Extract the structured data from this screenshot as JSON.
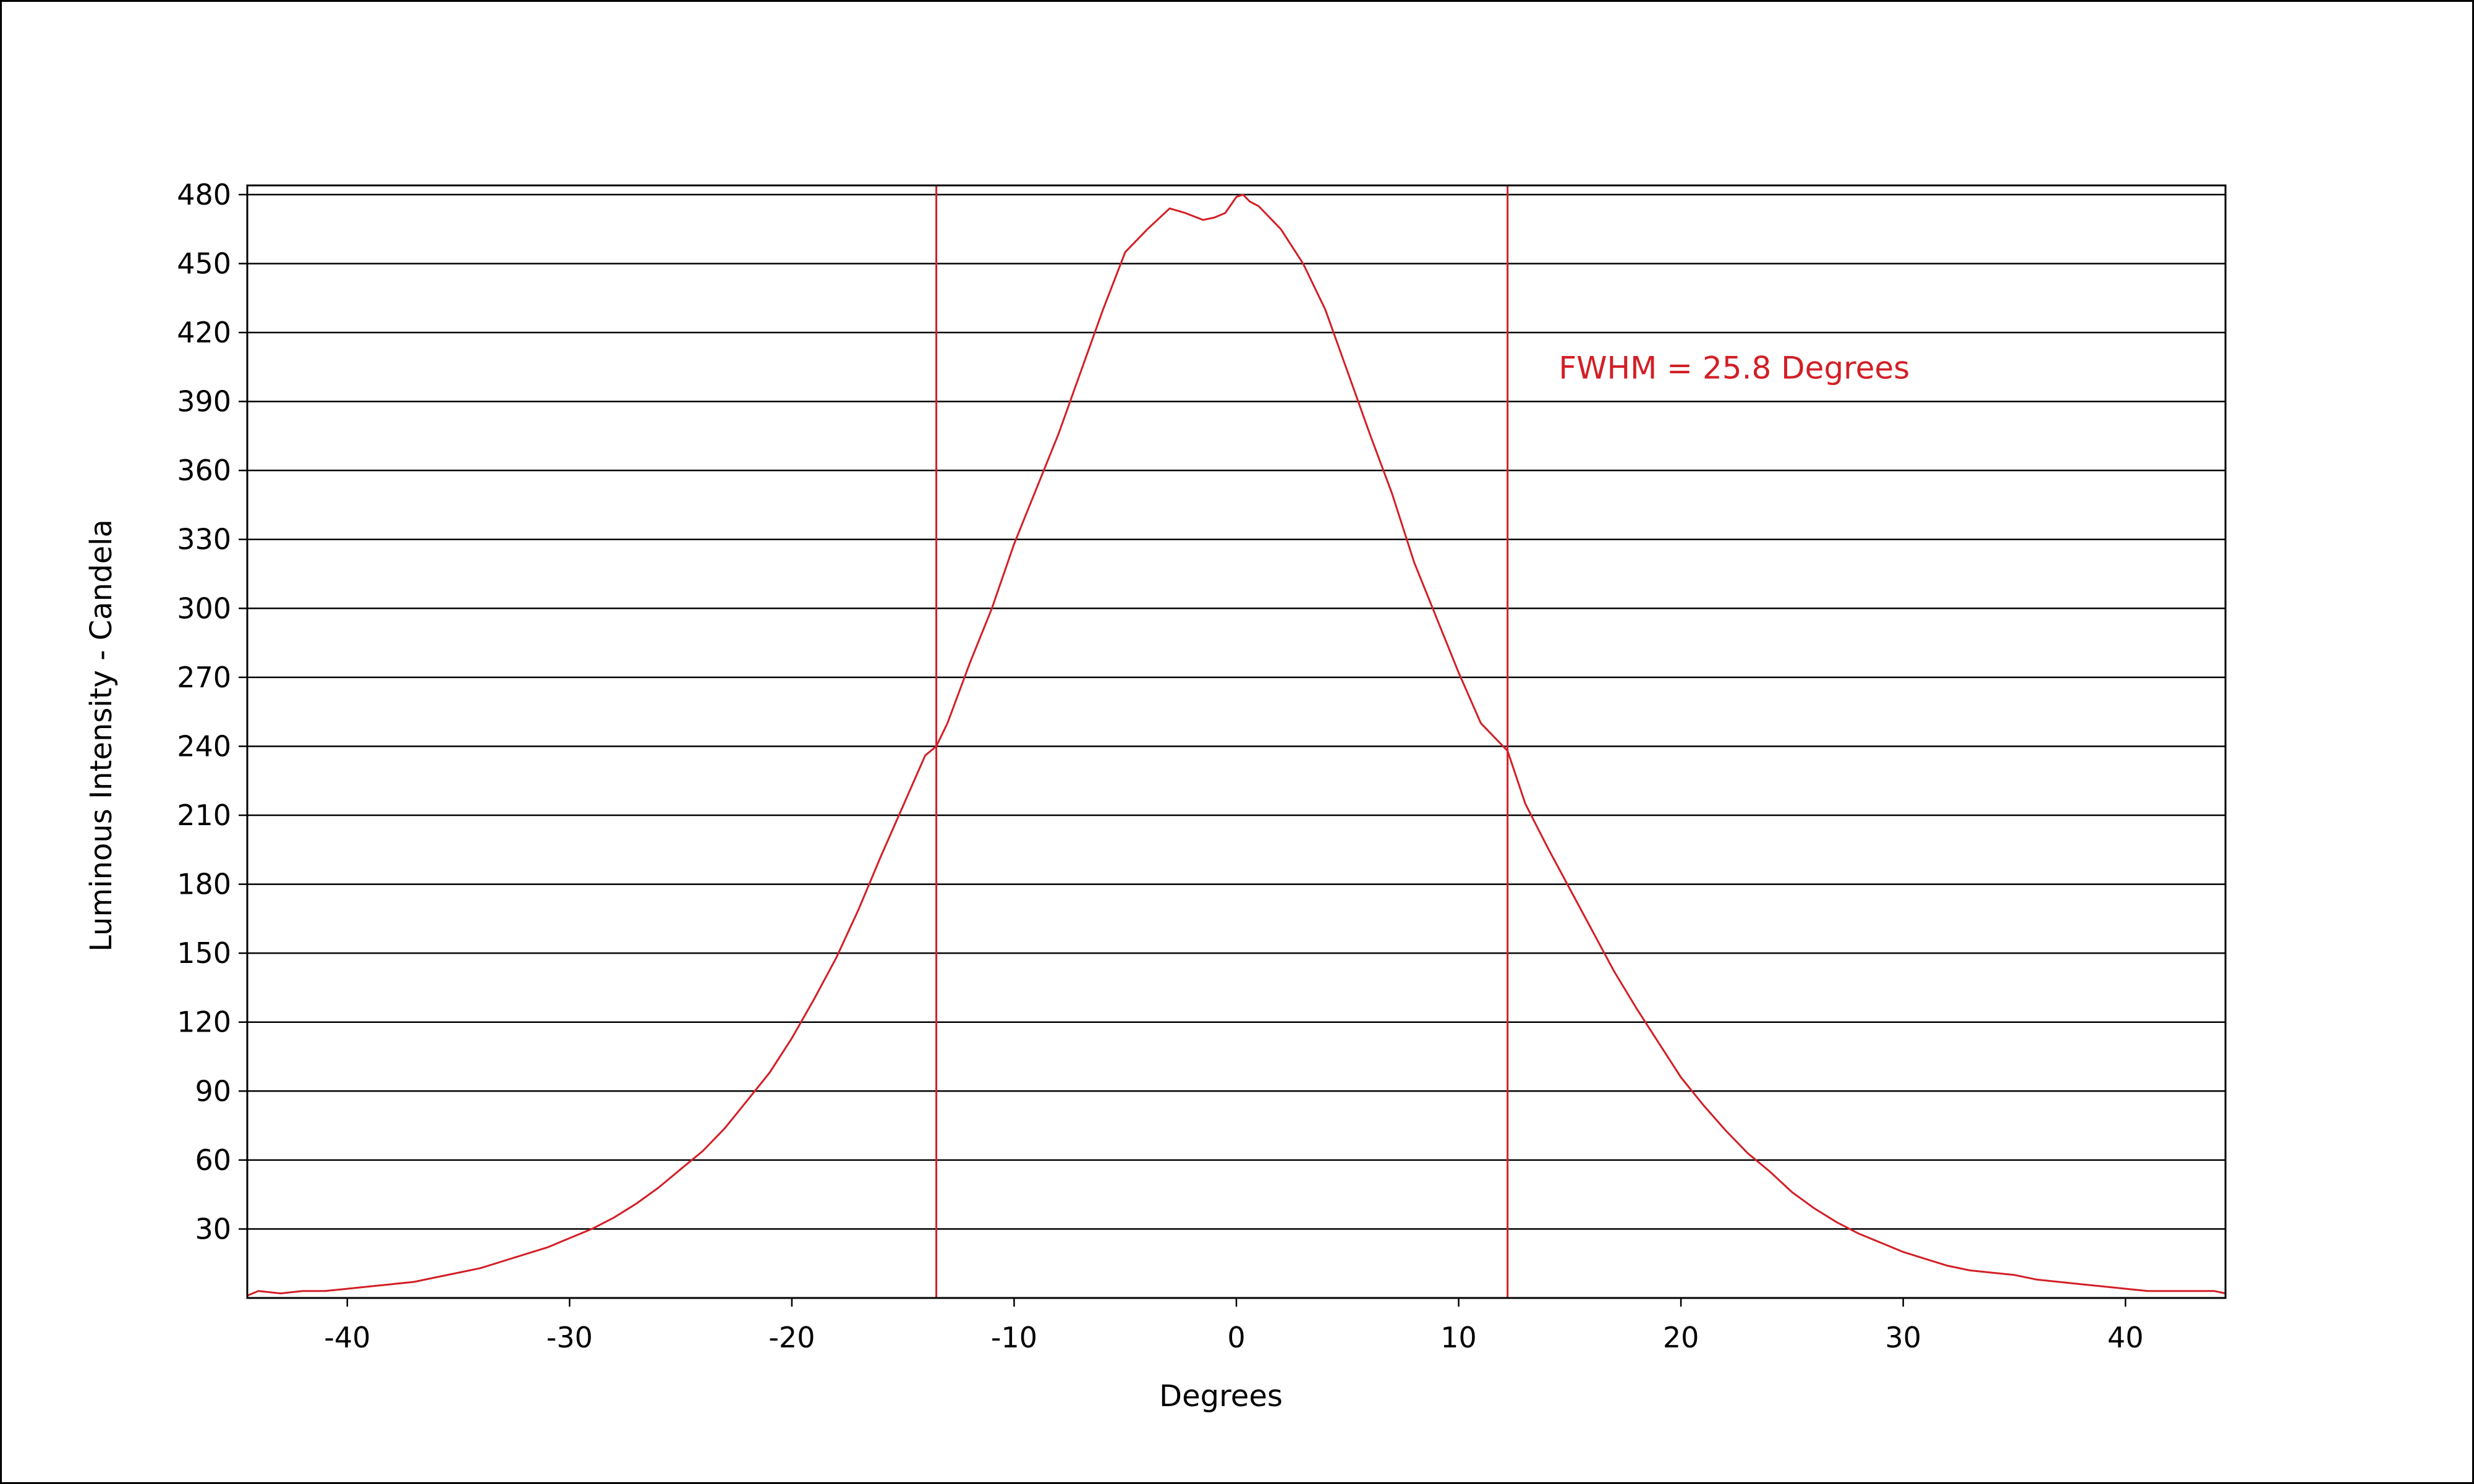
{
  "chart_data": {
    "type": "line",
    "title": "",
    "xlabel": "Degrees",
    "ylabel": "Luminous Intensity - Candela",
    "xlim": [
      -44.5,
      44.5
    ],
    "ylim": [
      0,
      484
    ],
    "x_ticks": [
      -40,
      -30,
      -20,
      -10,
      0,
      10,
      20,
      30,
      40
    ],
    "y_ticks": [
      30,
      60,
      90,
      120,
      150,
      180,
      210,
      240,
      270,
      300,
      330,
      360,
      390,
      420,
      450,
      480
    ],
    "grid": "horizontal",
    "line_color": "#d21f26",
    "series": [
      {
        "x": [
          -44.5,
          -44,
          -43,
          -42,
          -41,
          -40,
          -39,
          -38,
          -37,
          -36,
          -35,
          -34,
          -33,
          -32,
          -31,
          -30,
          -29,
          -28,
          -27,
          -26,
          -25,
          -24,
          -23,
          -22,
          -21,
          -20,
          -19,
          -18,
          -17,
          -16,
          -15,
          -14,
          -13.5,
          -13,
          -12,
          -11,
          -10,
          -9,
          -8,
          -7,
          -6,
          -5,
          -4,
          -3,
          -2.3,
          -1.5,
          -1,
          -0.5,
          0,
          0.3,
          0.6,
          1,
          2,
          3,
          4,
          5,
          6,
          7,
          8,
          9,
          10,
          11,
          12,
          12.2,
          13,
          14,
          15,
          16,
          17,
          18,
          19,
          20,
          21,
          22,
          23,
          24,
          25,
          26,
          27,
          28,
          29,
          30,
          31,
          32,
          33,
          34,
          35,
          36,
          37,
          38,
          39,
          40,
          41,
          42,
          43,
          44,
          44.5
        ],
        "y": [
          1,
          3,
          2,
          3,
          3,
          4,
          5,
          6,
          7,
          9,
          11,
          13,
          16,
          19,
          22,
          26,
          30,
          35,
          41,
          48,
          56,
          64,
          74,
          86,
          98,
          113,
          130,
          148,
          169,
          192,
          214,
          236,
          240,
          250,
          276,
          300,
          328,
          352,
          376,
          403,
          430,
          455,
          465,
          474,
          472,
          469,
          470,
          472,
          479,
          480,
          477,
          475,
          465,
          450,
          430,
          403,
          376,
          350,
          320,
          296,
          272,
          250,
          240,
          238,
          215,
          196,
          178,
          160,
          142,
          126,
          111,
          96,
          84,
          73,
          63,
          55,
          46,
          39,
          33,
          28,
          24,
          20,
          17,
          14,
          12,
          11,
          10,
          8,
          7,
          6,
          5,
          4,
          3,
          3,
          3,
          3,
          2
        ]
      }
    ],
    "markers": [
      {
        "x": -13.5
      },
      {
        "x": 12.2
      }
    ],
    "annotation": {
      "text": "FWHM = 25.8 Degrees",
      "x": 14.5,
      "y": 400
    }
  }
}
